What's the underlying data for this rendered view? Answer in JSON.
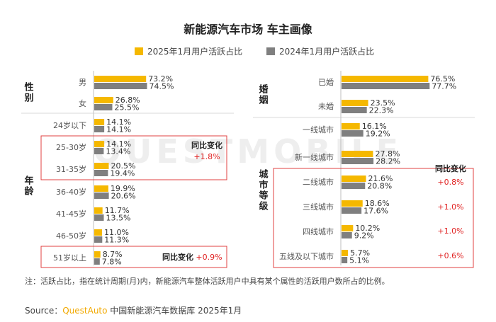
{
  "title": "新能源汽车市场 车主画像",
  "legend": {
    "series": [
      {
        "name": "2025年1月用户活跃占比",
        "color": "#f5b800"
      },
      {
        "name": "2024年1月用户活跃占比",
        "color": "#7f7f7f"
      }
    ]
  },
  "note": "注：活跃占比，指在统计周期(月)内，新能源汽车整体活跃用户中具有某个属性的活跃用户数所占的比例。",
  "source": {
    "prefix": "Source：",
    "brand": "QuestAuto",
    "text": " 中国新能源汽车数据库 2025年1月"
  },
  "watermark": "QUESTMOBILE",
  "chart_data": [
    {
      "type": "bar",
      "orientation": "horizontal",
      "groups": [
        {
          "label": "性别",
          "categories": [
            "男",
            "女"
          ]
        },
        {
          "label": "年龄",
          "categories": [
            "24岁以下",
            "25-30岁",
            "31-35岁",
            "36-40岁",
            "41-45岁",
            "46-50岁",
            "51岁以上"
          ]
        }
      ],
      "categories": [
        "男",
        "女",
        "24岁以下",
        "25-30岁",
        "31-35岁",
        "36-40岁",
        "41-45岁",
        "46-50岁",
        "51岁以上"
      ],
      "series": [
        {
          "name": "2025年1月用户活跃占比",
          "values": [
            73.2,
            26.8,
            14.1,
            14.1,
            20.5,
            19.9,
            11.7,
            11.0,
            8.7
          ]
        },
        {
          "name": "2024年1月用户活跃占比",
          "values": [
            74.5,
            25.5,
            14.1,
            13.4,
            19.4,
            20.6,
            13.5,
            11.3,
            7.8
          ]
        }
      ],
      "unit": "%",
      "annotations": [
        {
          "title": "同比变化",
          "value": "+1.8%"
        },
        {
          "title": "同比变化",
          "value": "+0.9%"
        }
      ]
    },
    {
      "type": "bar",
      "orientation": "horizontal",
      "groups": [
        {
          "label": "婚姻",
          "categories": [
            "已婚",
            "未婚"
          ]
        },
        {
          "label": "城市等级",
          "categories": [
            "一线城市",
            "新一线城市",
            "二线城市",
            "三线城市",
            "四线城市",
            "五线及以下城市"
          ]
        }
      ],
      "categories": [
        "已婚",
        "未婚",
        "一线城市",
        "新一线城市",
        "二线城市",
        "三线城市",
        "四线城市",
        "五线及以下城市"
      ],
      "series": [
        {
          "name": "2025年1月用户活跃占比",
          "values": [
            76.5,
            23.5,
            16.1,
            27.8,
            21.6,
            18.6,
            10.2,
            5.7
          ]
        },
        {
          "name": "2024年1月用户活跃占比",
          "values": [
            77.7,
            22.3,
            19.2,
            28.2,
            20.8,
            17.6,
            9.2,
            5.1
          ]
        }
      ],
      "unit": "%",
      "annotations": [
        {
          "title": "同比变化",
          "values": [
            "+0.8%",
            "+1.0%",
            "+1.0%",
            "+0.6%"
          ]
        }
      ]
    }
  ]
}
